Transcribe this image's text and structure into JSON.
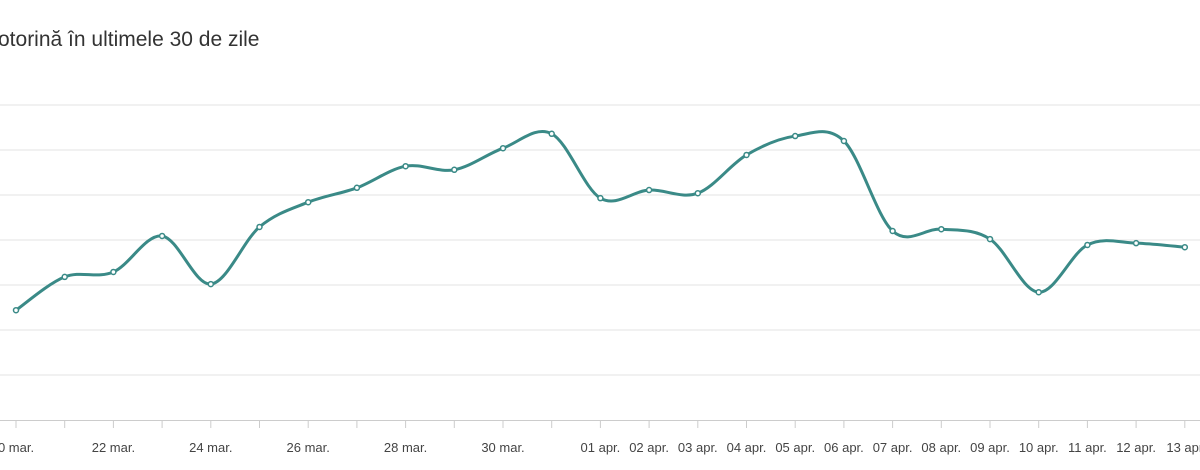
{
  "chart_data": {
    "type": "line",
    "title": "otorină în ultimele 30 de zile",
    "categories": [
      "0 mar.",
      null,
      "22 mar.",
      null,
      "24 mar.",
      null,
      "26 mar.",
      null,
      "28 mar.",
      null,
      "30 mar.",
      null,
      "01 apr.",
      "02 apr.",
      "03 apr.",
      "04 apr.",
      "05 apr.",
      "06 apr.",
      "07 apr.",
      "08 apr.",
      "09 apr.",
      "10 apr.",
      "11 apr.",
      "12 apr.",
      "13 apr"
    ],
    "values": [
      2.44,
      3.18,
      3.29,
      4.09,
      3.02,
      4.29,
      4.84,
      5.16,
      5.64,
      5.56,
      6.04,
      6.36,
      4.93,
      5.11,
      5.04,
      5.89,
      6.31,
      6.2,
      4.2,
      4.24,
      4.02,
      2.84,
      3.89,
      3.93,
      3.84
    ],
    "color": "#3a8a87",
    "ylim": [
      0,
      7
    ]
  }
}
